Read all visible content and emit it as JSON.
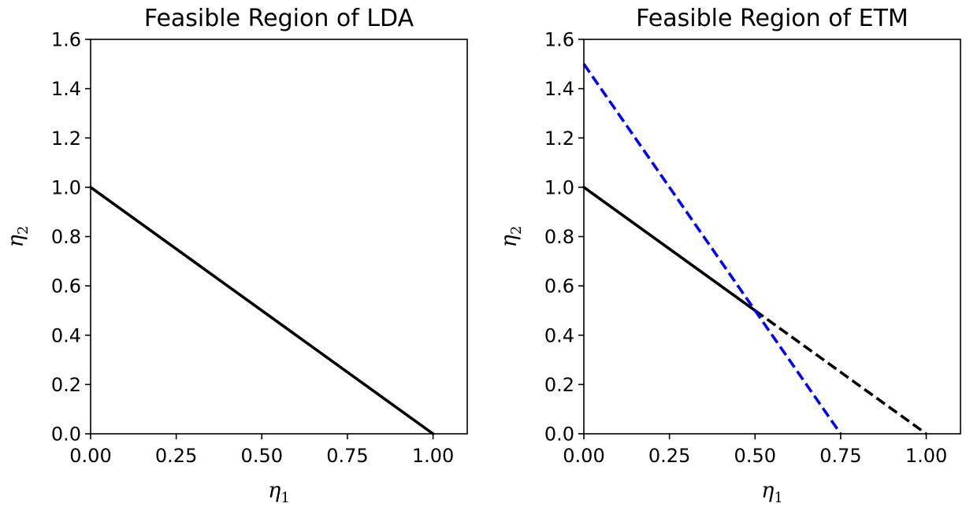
{
  "chart_data": [
    {
      "type": "line",
      "title": "Feasible Region of LDA",
      "xlabel": "η1",
      "ylabel": "η2",
      "xlim": [
        0.0,
        1.1
      ],
      "ylim": [
        0.0,
        1.6
      ],
      "xticks": [
        "0.00",
        "0.25",
        "0.50",
        "0.75",
        "1.00"
      ],
      "yticks": [
        "0.0",
        "0.2",
        "0.4",
        "0.6",
        "0.8",
        "1.0",
        "1.2",
        "1.4",
        "1.6"
      ],
      "grid": false,
      "series": [
        {
          "x": [
            0.0,
            1.0
          ],
          "y": [
            1.0,
            0.0
          ],
          "color": "#000000",
          "style": "solid"
        }
      ]
    },
    {
      "type": "line",
      "title": "Feasible Region of ETM",
      "xlabel": "η1",
      "ylabel": "η2",
      "xlim": [
        0.0,
        1.1
      ],
      "ylim": [
        0.0,
        1.6
      ],
      "xticks": [
        "0.00",
        "0.25",
        "0.50",
        "0.75",
        "1.00"
      ],
      "yticks": [
        "0.0",
        "0.2",
        "0.4",
        "0.6",
        "0.8",
        "1.0",
        "1.2",
        "1.4",
        "1.6"
      ],
      "grid": false,
      "series": [
        {
          "x": [
            0.0,
            0.5
          ],
          "y": [
            1.0,
            0.5
          ],
          "color": "#000000",
          "style": "solid"
        },
        {
          "x": [
            0.5,
            1.0
          ],
          "y": [
            0.5,
            0.0
          ],
          "color": "#000000",
          "style": "dashed"
        },
        {
          "x": [
            0.0,
            0.75
          ],
          "y": [
            1.5,
            0.0
          ],
          "color": "#0000ff",
          "style": "dashed"
        }
      ]
    }
  ]
}
